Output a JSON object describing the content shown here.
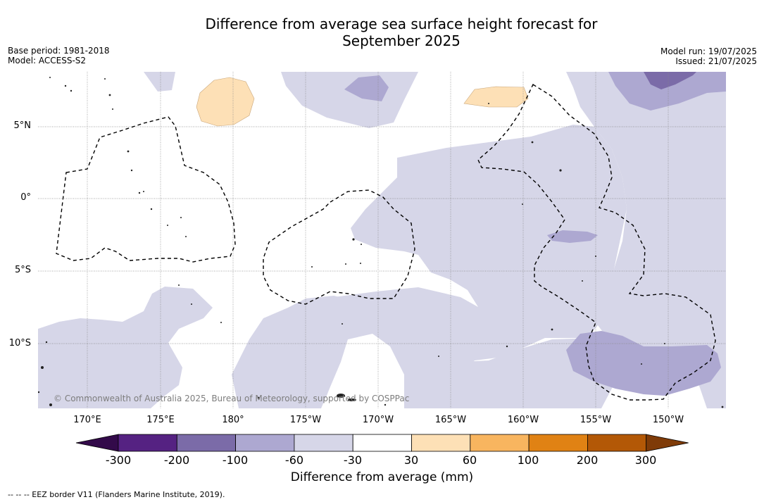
{
  "title_line1": "Difference from average sea surface height forecast for",
  "title_line2": "September 2025",
  "meta_left": [
    "Base period: 1981-2018",
    "Model: ACCESS-S2"
  ],
  "meta_right": [
    "Model run: 19/07/2025",
    "Issued: 21/07/2025"
  ],
  "copyright": "© Commonwealth of Australia 2025, Bureau of Meteorology, supported by COSPPac",
  "lat_labels": [
    "5°N",
    "0°",
    "5°S",
    "10°S"
  ],
  "lon_labels": [
    "170°E",
    "175°E",
    "180°",
    "175°W",
    "170°W",
    "165°W",
    "160°W",
    "155°W",
    "150°W"
  ],
  "colorbar": {
    "ticks": [
      "-300",
      "-200",
      "-100",
      "-60",
      "-30",
      "30",
      "60",
      "100",
      "200",
      "300"
    ],
    "colors": [
      "#330a4a",
      "#552282",
      "#7b6ba8",
      "#ada8d1",
      "#d6d6e8",
      "#ffffff",
      "#fde0b6",
      "#f8b55f",
      "#e08214",
      "#b35806",
      "#7f3b08"
    ],
    "label": "Difference from average (mm)"
  },
  "footnote": "--  --  -- EEZ border V11 (Flanders Marine Institute, 2019)."
}
